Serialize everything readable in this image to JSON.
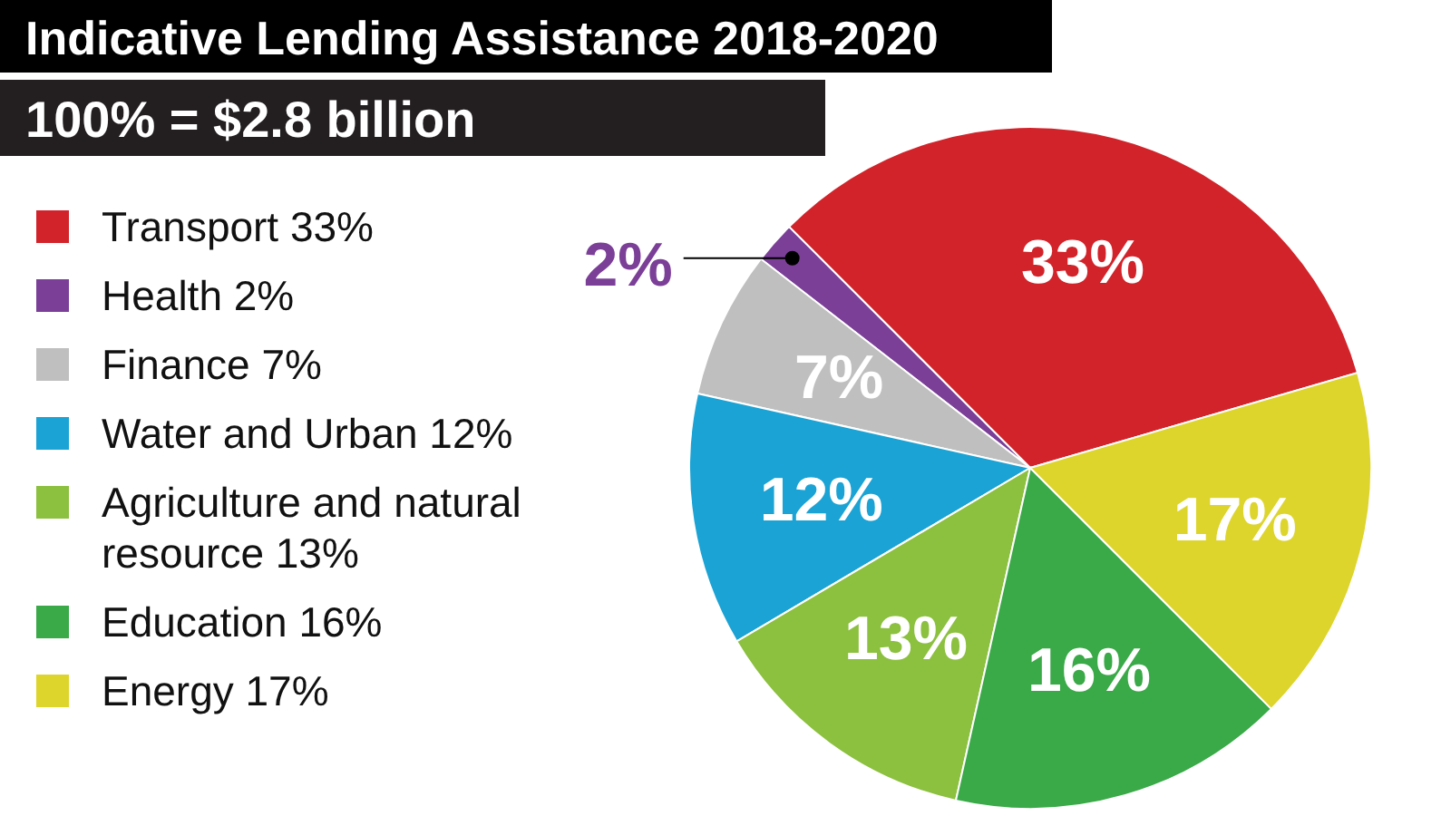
{
  "chart_data": {
    "type": "pie",
    "title": "Indicative Lending Assistance 2018-2020",
    "subtitle": "100% = $2.8 billion",
    "categories": [
      "Transport 33%",
      "Health 2%",
      "Finance 7%",
      "Water and Urban 12%",
      "Agriculture and natural resource 13%",
      "Education 16%",
      "Energy 17%"
    ],
    "values": [
      33,
      2,
      7,
      12,
      13,
      16,
      17
    ],
    "value_labels": [
      "33%",
      "2%",
      "7%",
      "12%",
      "13%",
      "16%",
      "17%"
    ],
    "colors": [
      "#d2232a",
      "#7b3f98",
      "#bfbfbf",
      "#1aa3d4",
      "#8cc03f",
      "#3aa948",
      "#ddd52c"
    ],
    "legend": "left"
  }
}
